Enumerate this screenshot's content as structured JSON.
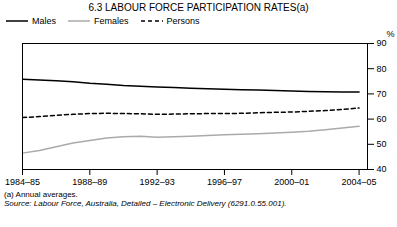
{
  "chart_data": {
    "type": "line",
    "title": "6.3   LABOUR FORCE PARTICIPATION RATES(a)",
    "x": [
      1984,
      1985,
      1986,
      1987,
      1988,
      1989,
      1990,
      1991,
      1992,
      1993,
      1994,
      1995,
      1996,
      1997,
      1998,
      1999,
      2000,
      2001,
      2002,
      2003,
      2004
    ],
    "series": [
      {
        "name": "Males",
        "color": "#000000",
        "line_style": "solid",
        "values": [
          75.8,
          75.5,
          75.2,
          74.8,
          74.2,
          73.8,
          73.3,
          73.0,
          72.7,
          72.5,
          72.2,
          72.0,
          71.8,
          71.6,
          71.5,
          71.3,
          71.2,
          71.0,
          70.9,
          70.8,
          70.8
        ]
      },
      {
        "name": "Females",
        "color": "#aaaaaa",
        "line_style": "solid",
        "values": [
          46.5,
          47.5,
          49.0,
          50.5,
          51.5,
          52.5,
          53.0,
          53.2,
          52.8,
          53.0,
          53.2,
          53.5,
          53.8,
          54.0,
          54.2,
          54.5,
          54.8,
          55.2,
          55.8,
          56.5,
          57.2
        ]
      },
      {
        "name": "Persons",
        "color": "#000000",
        "line_style": "dashed",
        "values": [
          60.6,
          61.0,
          61.5,
          61.9,
          62.2,
          62.3,
          62.2,
          62.1,
          61.9,
          62.0,
          62.1,
          62.2,
          62.2,
          62.3,
          62.5,
          62.7,
          62.8,
          63.1,
          63.4,
          63.8,
          64.4
        ]
      }
    ],
    "xlim": [
      1984,
      2004.5
    ],
    "xticks": [
      {
        "value": 1984,
        "label": "1984–85"
      },
      {
        "value": 1988,
        "label": "1988–89"
      },
      {
        "value": 1992,
        "label": "1992–93"
      },
      {
        "value": 1996,
        "label": "1996–97"
      },
      {
        "value": 2000,
        "label": "2000–01"
      },
      {
        "value": 2004,
        "label": "2004–05"
      }
    ],
    "ylim": [
      40,
      90
    ],
    "yticks": [
      40,
      50,
      60,
      70,
      80,
      90
    ],
    "ylabel": "%",
    "legend": "upper left",
    "grid": false,
    "annotations": [
      "(a) Annual averages.",
      "Source: Labour Force, Australia, Detailed – Electronic Delivery (6291.0.55.001)."
    ]
  }
}
